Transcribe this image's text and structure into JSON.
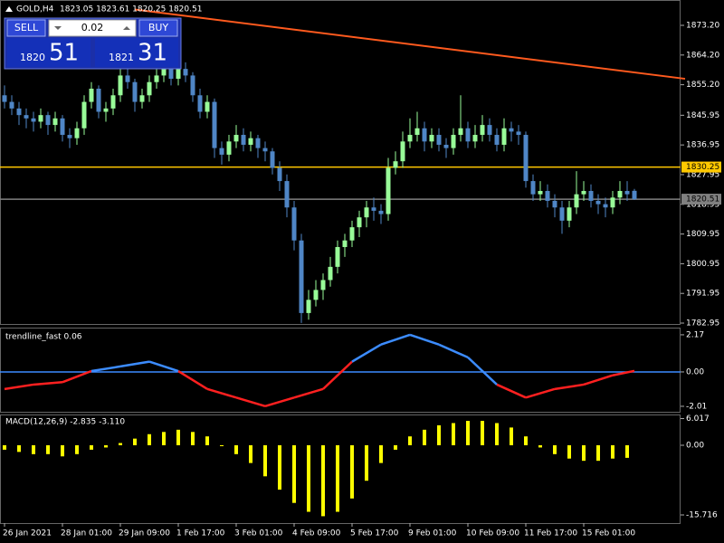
{
  "header": {
    "symbol": "GOLD,H4",
    "ohlc": "1823.05 1823.61 1820.25 1820.51"
  },
  "trade_panel": {
    "sell": "SELL",
    "lot": "0.02",
    "buy": "BUY",
    "bid_prefix": "1820",
    "bid_pips": "51",
    "ask_prefix": "1821",
    "ask_pips": "31"
  },
  "chart_data": [
    {
      "type": "candlestick",
      "bull_color": "#98fb98",
      "bear_color": "#4f86c6",
      "candles": [
        [
          1852,
          1855,
          1848,
          1850
        ],
        [
          1850,
          1852,
          1846,
          1848
        ],
        [
          1848,
          1850,
          1843,
          1846
        ],
        [
          1846,
          1848,
          1842,
          1845
        ],
        [
          1845,
          1847,
          1841,
          1844
        ],
        [
          1844,
          1848,
          1842,
          1846
        ],
        [
          1846,
          1847,
          1840,
          1843
        ],
        [
          1843,
          1847,
          1841,
          1845
        ],
        [
          1845,
          1846,
          1838,
          1840
        ],
        [
          1840,
          1842,
          1836,
          1839
        ],
        [
          1839,
          1844,
          1837,
          1842
        ],
        [
          1842,
          1852,
          1840,
          1850
        ],
        [
          1850,
          1856,
          1848,
          1854
        ],
        [
          1854,
          1855,
          1845,
          1847
        ],
        [
          1847,
          1850,
          1844,
          1848
        ],
        [
          1848,
          1854,
          1846,
          1852
        ],
        [
          1852,
          1860,
          1850,
          1858
        ],
        [
          1858,
          1860,
          1854,
          1856
        ],
        [
          1856,
          1857,
          1847,
          1850
        ],
        [
          1850,
          1854,
          1848,
          1852
        ],
        [
          1852,
          1858,
          1850,
          1856
        ],
        [
          1856,
          1861,
          1854,
          1858
        ],
        [
          1858,
          1863,
          1856,
          1860
        ],
        [
          1860,
          1862,
          1855,
          1857
        ],
        [
          1857,
          1862,
          1855,
          1860
        ],
        [
          1860,
          1862,
          1856,
          1858
        ],
        [
          1858,
          1859,
          1850,
          1852
        ],
        [
          1852,
          1854,
          1845,
          1847
        ],
        [
          1847,
          1852,
          1845,
          1850
        ],
        [
          1850,
          1851,
          1833,
          1836
        ],
        [
          1836,
          1838,
          1831,
          1834
        ],
        [
          1834,
          1840,
          1832,
          1838
        ],
        [
          1838,
          1843,
          1836,
          1840
        ],
        [
          1840,
          1842,
          1835,
          1837
        ],
        [
          1837,
          1841,
          1835,
          1839
        ],
        [
          1839,
          1840,
          1833,
          1836
        ],
        [
          1836,
          1838,
          1832,
          1835
        ],
        [
          1835,
          1836,
          1828,
          1830
        ],
        [
          1830,
          1832,
          1823,
          1826
        ],
        [
          1826,
          1828,
          1815,
          1818
        ],
        [
          1818,
          1820,
          1805,
          1808
        ],
        [
          1808,
          1810,
          1783,
          1786
        ],
        [
          1786,
          1793,
          1784,
          1790
        ],
        [
          1790,
          1796,
          1788,
          1793
        ],
        [
          1793,
          1798,
          1790,
          1796
        ],
        [
          1796,
          1803,
          1794,
          1800
        ],
        [
          1800,
          1808,
          1798,
          1806
        ],
        [
          1806,
          1810,
          1803,
          1808
        ],
        [
          1808,
          1814,
          1806,
          1812
        ],
        [
          1812,
          1817,
          1809,
          1815
        ],
        [
          1815,
          1820,
          1812,
          1818
        ],
        [
          1818,
          1821,
          1814,
          1817
        ],
        [
          1817,
          1819,
          1813,
          1816
        ],
        [
          1816,
          1833,
          1814,
          1830
        ],
        [
          1830,
          1835,
          1828,
          1832
        ],
        [
          1832,
          1841,
          1830,
          1838
        ],
        [
          1838,
          1845,
          1836,
          1840
        ],
        [
          1840,
          1847,
          1838,
          1842
        ],
        [
          1842,
          1844,
          1835,
          1838
        ],
        [
          1838,
          1842,
          1836,
          1840
        ],
        [
          1840,
          1842,
          1835,
          1837
        ],
        [
          1837,
          1839,
          1833,
          1836
        ],
        [
          1836,
          1842,
          1834,
          1840
        ],
        [
          1840,
          1852,
          1838,
          1842
        ],
        [
          1842,
          1844,
          1836,
          1838
        ],
        [
          1838,
          1843,
          1836,
          1840
        ],
        [
          1840,
          1846,
          1838,
          1843
        ],
        [
          1843,
          1845,
          1838,
          1840
        ],
        [
          1840,
          1842,
          1835,
          1837
        ],
        [
          1837,
          1845,
          1835,
          1842
        ],
        [
          1842,
          1844,
          1838,
          1841
        ],
        [
          1841,
          1843,
          1837,
          1840
        ],
        [
          1840,
          1841,
          1824,
          1826
        ],
        [
          1826,
          1828,
          1820,
          1822
        ],
        [
          1822,
          1826,
          1820,
          1823
        ],
        [
          1823,
          1825,
          1818,
          1820
        ],
        [
          1820,
          1822,
          1815,
          1818
        ],
        [
          1818,
          1820,
          1810,
          1814
        ],
        [
          1814,
          1820,
          1812,
          1818
        ],
        [
          1818,
          1829,
          1816,
          1822
        ],
        [
          1822,
          1826,
          1820,
          1823
        ],
        [
          1823,
          1825,
          1818,
          1820
        ],
        [
          1820,
          1822,
          1816,
          1819
        ],
        [
          1819,
          1821,
          1815,
          1818
        ],
        [
          1818,
          1823,
          1816,
          1821
        ],
        [
          1821,
          1826,
          1819,
          1823
        ],
        [
          1823,
          1826,
          1820,
          1822
        ],
        [
          1823.05,
          1823.61,
          1820.25,
          1820.51
        ]
      ],
      "ylim": [
        1782.68,
        1880.88
      ],
      "yticks": [
        {
          "value": 1873.2,
          "label": "1873.20"
        },
        {
          "value": 1864.2,
          "label": "1864.20"
        },
        {
          "value": 1855.2,
          "label": "1855.20"
        },
        1845.95,
        1836.95,
        1827.95,
        1818.95,
        1809.95,
        1800.95,
        1791.95,
        1782.95
      ],
      "xticks": [
        {
          "value": 0,
          "label": "26 Jan 2021"
        },
        {
          "value": 8,
          "label": "28 Jan 01:00"
        },
        {
          "value": 16,
          "label": "29 Jan 09:00"
        },
        {
          "value": 24,
          "label": "1 Feb 17:00"
        },
        {
          "value": 32,
          "label": "3 Feb 01:00"
        },
        {
          "value": 40,
          "label": "4 Feb 09:00"
        },
        {
          "value": 48,
          "label": "5 Feb 17:00"
        },
        {
          "value": 56,
          "label": "9 Feb 01:00"
        },
        {
          "value": 64,
          "label": "10 Feb 09:00"
        },
        {
          "value": 72,
          "label": "11 Feb 17:00"
        },
        {
          "value": 80,
          "label": "15 Feb 01:00"
        }
      ],
      "trend_line": {
        "x": [
          18,
          94
        ],
        "y": [
          1878,
          1857
        ],
        "color": "#ff5a1e"
      },
      "levels": [
        {
          "value": 1830.25,
          "color": "#ffc800"
        },
        {
          "value": 1820.51,
          "color": "#808080"
        }
      ]
    },
    {
      "type": "line",
      "title": "trendline_fast 0.06",
      "up_color": "#3c8cff",
      "down_color": "#ff2020",
      "zero_color": "#3c8cff",
      "x": [
        0,
        4,
        8,
        12,
        16,
        20,
        24,
        28,
        32,
        36,
        40,
        44,
        48,
        52,
        56,
        60,
        64,
        68,
        72,
        76,
        80,
        84,
        87
      ],
      "values": [
        -1.0,
        -0.74,
        -0.6,
        0.05,
        0.32,
        0.6,
        0.05,
        -1.0,
        -1.5,
        -2.0,
        -1.5,
        -1.0,
        0.6,
        1.6,
        2.17,
        1.6,
        0.85,
        -0.74,
        -1.5,
        -1.0,
        -0.74,
        -0.2,
        0.06
      ],
      "ylim": [
        -2.33,
        2.59
      ],
      "yticks": [
        2.17,
        {
          "value": 0,
          "label": "0.00"
        },
        -2.01
      ]
    },
    {
      "type": "bar",
      "title": "MACD(12,26,9) -2.835 -3.110",
      "color": "#ffff00",
      "x": [
        0,
        2,
        4,
        6,
        8,
        10,
        12,
        14,
        16,
        18,
        20,
        22,
        24,
        26,
        28,
        30,
        32,
        34,
        36,
        38,
        40,
        42,
        44,
        46,
        48,
        50,
        52,
        54,
        56,
        58,
        60,
        62,
        64,
        66,
        68,
        70,
        72,
        74,
        76,
        78,
        80,
        82,
        84,
        86
      ],
      "values": [
        -1,
        -1.5,
        -2,
        -2,
        -2.5,
        -2,
        -1,
        -0.5,
        0.5,
        1.5,
        2.5,
        3,
        3.5,
        3,
        2,
        0,
        -2,
        -4,
        -7,
        -10,
        -13,
        -15,
        -16,
        -15,
        -12,
        -8,
        -4,
        -1,
        2,
        3.5,
        4.5,
        5,
        5.5,
        5.5,
        5,
        4,
        2,
        -0.5,
        -2,
        -3,
        -3.5,
        -3.5,
        -3,
        -2.835
      ],
      "ylim": [
        -17.55,
        6.94
      ],
      "yticks": [
        6.017,
        {
          "value": 0,
          "label": "0.00"
        },
        -15.716
      ]
    }
  ]
}
